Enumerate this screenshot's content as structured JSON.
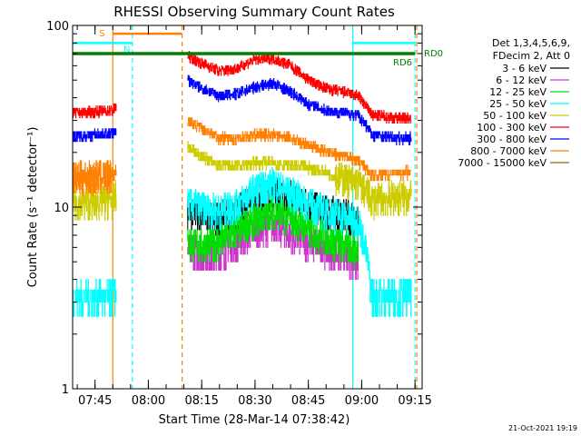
{
  "chart_data": {
    "type": "line",
    "title": "RHESSI Observing Summary Count Rates",
    "xlabel": "Start Time (28-Mar-14 07:38:42)",
    "ylabel": "Count Rate (s⁻¹ detector⁻¹)",
    "yscale": "log",
    "ylim": [
      1,
      100
    ],
    "xlim": [
      "07:38:42",
      "09:17:00"
    ],
    "x_ticks": [
      "07:45",
      "08:00",
      "08:15",
      "08:30",
      "08:45",
      "09:00",
      "09:15"
    ],
    "y_ticks": [
      "1",
      "10",
      "100"
    ],
    "grid": false,
    "legend_position": "right",
    "legend_header": [
      "Det 1,3,4,5,6,9,",
      "FDecim 2, Att 0"
    ],
    "footer_date": "21-Oct-2021 19:19",
    "legend_text_color": "#000000",
    "data_gap": {
      "start": "07:51:00",
      "end": "08:11:00"
    },
    "series": [
      {
        "name": "3 - 6 keV",
        "color": "#000000",
        "x": [
          "08:11",
          "08:15",
          "08:20",
          "08:25",
          "08:30",
          "08:35",
          "08:40",
          "08:45",
          "08:50",
          "08:55",
          "08:59"
        ],
        "values": [
          9.5,
          9.0,
          8.8,
          9.5,
          11,
          12,
          11.5,
          10.5,
          9.5,
          9.0,
          8.8
        ]
      },
      {
        "name": "6 - 12 keV",
        "color": "#cc33cc",
        "x": [
          "08:11",
          "08:15",
          "08:20",
          "08:25",
          "08:30",
          "08:35",
          "08:40",
          "08:45",
          "08:50",
          "08:55",
          "08:59"
        ],
        "values": [
          6.0,
          5.5,
          5.5,
          6.5,
          7.5,
          8.0,
          7.0,
          6.5,
          6.0,
          5.5,
          5.0
        ]
      },
      {
        "name": "12 - 25 keV",
        "color": "#00dd00",
        "x": [
          "08:11",
          "08:15",
          "08:20",
          "08:25",
          "08:30",
          "08:35",
          "08:40",
          "08:45",
          "08:50",
          "08:55",
          "08:59"
        ],
        "values": [
          6.5,
          6.2,
          6.4,
          7.5,
          8.5,
          9.5,
          8.8,
          7.5,
          6.8,
          6.2,
          5.8
        ]
      },
      {
        "name": "25 - 50 keV",
        "color": "#00ffff",
        "x": [
          "07:38:42",
          "07:45",
          "07:50",
          "08:11",
          "08:15",
          "08:20",
          "08:25",
          "08:30",
          "08:35",
          "08:40",
          "08:45",
          "08:50",
          "08:55",
          "08:59",
          "09:03",
          "09:10",
          "09:14"
        ],
        "values": [
          3.2,
          3.2,
          3.2,
          10.5,
          10.0,
          9.5,
          10.5,
          12.5,
          13.5,
          12.0,
          10.5,
          9.5,
          9.0,
          8.5,
          3.2,
          3.3,
          3.3
        ]
      },
      {
        "name": "50 - 100 keV",
        "color": "#cccc00",
        "x": [
          "07:38:42",
          "07:45",
          "07:50",
          "08:11",
          "08:15",
          "08:20",
          "08:25",
          "08:30",
          "08:35",
          "08:40",
          "08:45",
          "08:50",
          "08:55",
          "08:59",
          "09:03",
          "09:10",
          "09:14"
        ],
        "values": [
          10.5,
          10.8,
          11.0,
          21.5,
          19.0,
          17.0,
          17.0,
          17.5,
          17.5,
          17.0,
          16.5,
          15.5,
          14.5,
          13.5,
          11.0,
          11.5,
          11.5
        ]
      },
      {
        "name": "100 - 300 keV",
        "color": "#ff0000",
        "x": [
          "07:38:42",
          "07:45",
          "07:50",
          "08:11",
          "08:15",
          "08:20",
          "08:25",
          "08:30",
          "08:35",
          "08:40",
          "08:45",
          "08:50",
          "08:55",
          "08:59",
          "09:03",
          "09:10",
          "09:14"
        ],
        "values": [
          33,
          33.5,
          34,
          68,
          62,
          56,
          58,
          65,
          66,
          60,
          50,
          45,
          43,
          41,
          32,
          31,
          31
        ]
      },
      {
        "name": "300 - 800 keV",
        "color": "#0000ff",
        "x": [
          "07:38:42",
          "07:45",
          "07:50",
          "08:11",
          "08:15",
          "08:20",
          "08:25",
          "08:30",
          "08:35",
          "08:40",
          "08:45",
          "08:50",
          "08:55",
          "08:59",
          "09:03",
          "09:10",
          "09:14"
        ],
        "values": [
          24.5,
          25,
          25.5,
          50,
          45,
          41,
          42,
          46,
          48,
          43,
          37,
          34,
          33,
          32,
          25,
          24,
          24
        ]
      },
      {
        "name": "800 - 7000 keV",
        "color": "#ff8000",
        "x": [
          "07:38:42",
          "07:45",
          "07:50",
          "08:11",
          "08:15",
          "08:20",
          "08:25",
          "08:30",
          "08:35",
          "08:40",
          "08:45",
          "08:50",
          "08:55",
          "08:59",
          "09:03",
          "09:10",
          "09:14"
        ],
        "values": [
          14.5,
          14.8,
          15.0,
          30,
          27,
          24,
          24,
          25,
          25,
          24,
          22,
          20,
          19,
          18,
          15,
          15.5,
          15.5
        ]
      },
      {
        "name": "7000 - 15000 keV",
        "color": "#996600",
        "x": [],
        "values": []
      }
    ],
    "annotations": [
      {
        "label": "S",
        "type": "attenuator",
        "color": "#ff8000",
        "x_start": "07:50:00",
        "x_end": "08:09:30",
        "y": 90
      },
      {
        "label": "N",
        "type": "night",
        "color": "#00ffff",
        "x_start": "07:38:42",
        "x_end": "07:55:30",
        "y": 80
      },
      {
        "label": "",
        "type": "night",
        "color": "#00ffff",
        "x_start": "08:57:30",
        "x_end": "09:15:00",
        "y": 80
      },
      {
        "label": "RD0",
        "type": "level",
        "color": "#008000",
        "x_start": "07:38:42",
        "x_end": "09:15:00",
        "y": 70
      },
      {
        "label": "RD6",
        "type": "level",
        "color": "#008000",
        "x_start": "",
        "x_end": "",
        "y": 70
      }
    ],
    "vertical_lines": [
      {
        "x": "07:50:00",
        "color": "#ff8000",
        "style": "solid"
      },
      {
        "x": "07:55:30",
        "color": "#00ffff",
        "style": "dashed"
      },
      {
        "x": "08:09:30",
        "color": "#ff8000",
        "style": "dashed"
      },
      {
        "x": "08:57:30",
        "color": "#00ffff",
        "style": "solid"
      },
      {
        "x": "09:15:00",
        "color": "#00ffff",
        "style": "dashed"
      },
      {
        "x": "09:15:30",
        "color": "#ff8000",
        "style": "dashed"
      }
    ]
  }
}
